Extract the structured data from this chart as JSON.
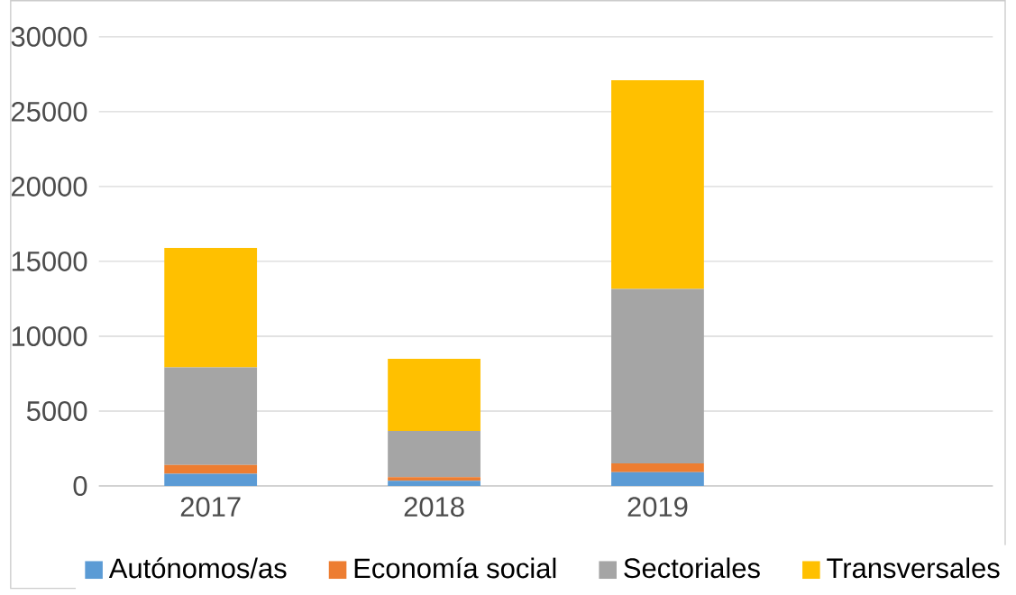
{
  "chart_data": {
    "type": "bar",
    "stacked": true,
    "categories": [
      "2017",
      "2018",
      "2019",
      null
    ],
    "series": [
      {
        "name": "Autónomos/as",
        "color": "#5b9bd5",
        "values": [
          820,
          350,
          920,
          null
        ]
      },
      {
        "name": "Economía social",
        "color": "#ed7d31",
        "values": [
          590,
          240,
          590,
          null
        ]
      },
      {
        "name": "Sectoriales",
        "color": "#a5a5a5",
        "values": [
          6510,
          3080,
          11650,
          null
        ]
      },
      {
        "name": "Transversales",
        "color": "#ffc000",
        "values": [
          7980,
          4820,
          13940,
          null
        ]
      }
    ],
    "ylim": [
      0,
      30000
    ],
    "yticks": [
      0,
      5000,
      10000,
      15000,
      20000,
      25000,
      30000
    ],
    "grid": "y",
    "legend": "bottom"
  }
}
